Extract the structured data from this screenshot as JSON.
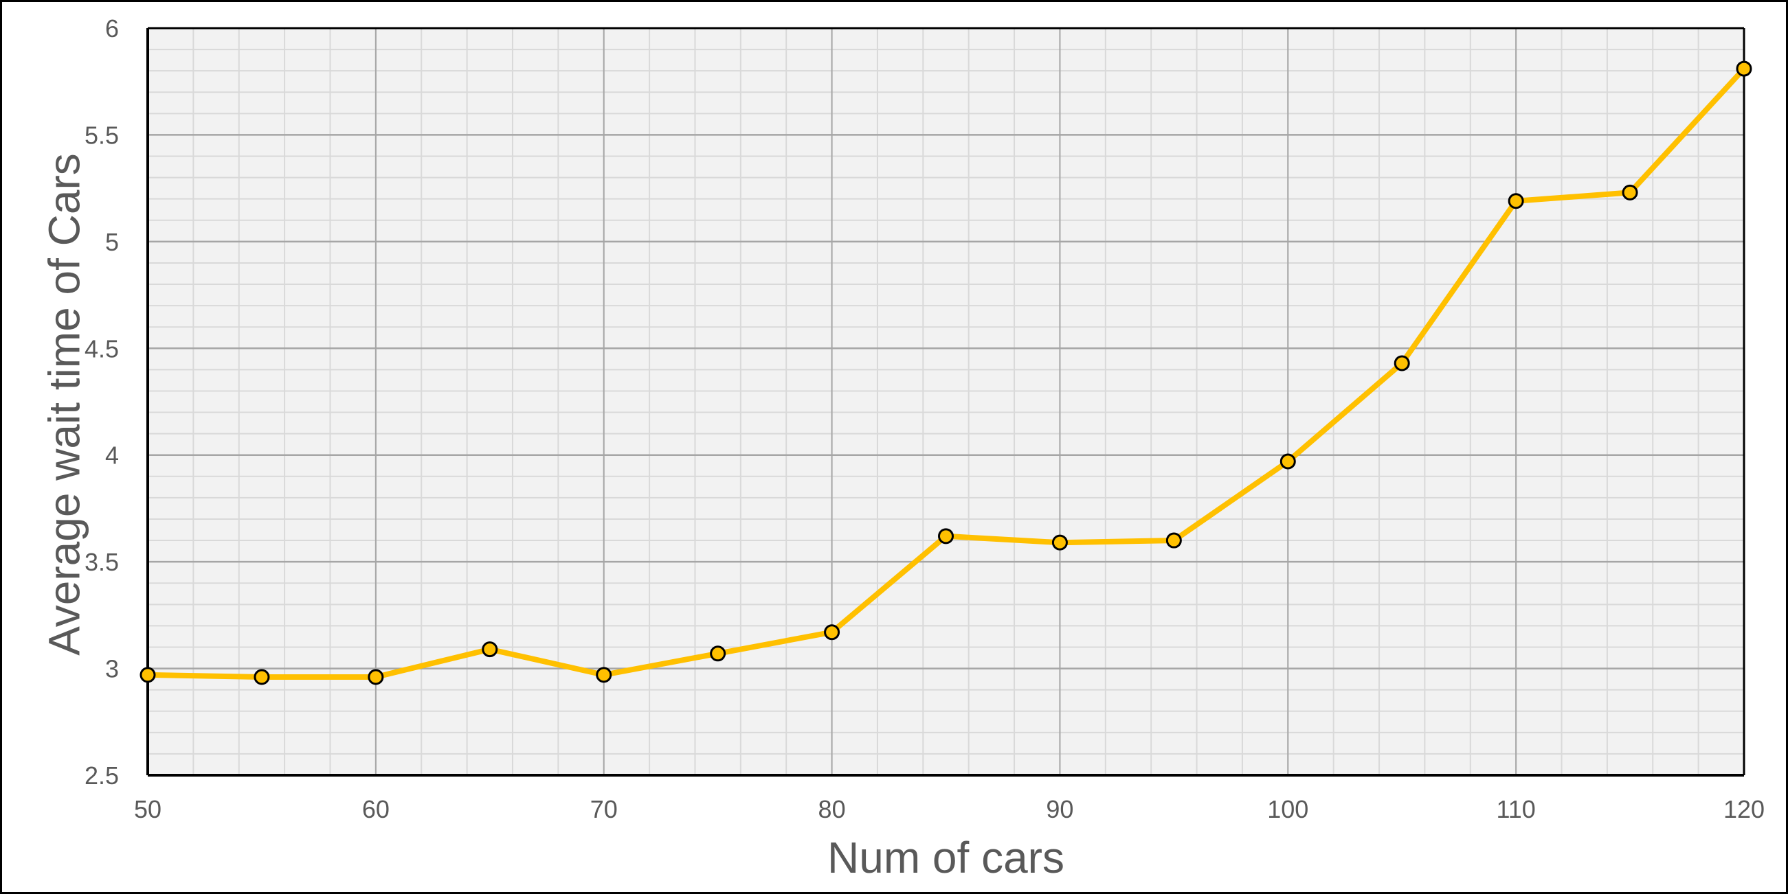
{
  "chart_data": {
    "type": "line",
    "title": "",
    "xlabel": "Num of cars",
    "ylabel": "Average wait time of Cars",
    "xlim": [
      50,
      120
    ],
    "ylim": [
      2.5,
      6
    ],
    "x_ticks": [
      50,
      60,
      70,
      80,
      90,
      100,
      110,
      120
    ],
    "y_ticks": [
      2.5,
      3,
      3.5,
      4,
      4.5,
      5,
      5.5,
      6
    ],
    "x_tick_labels": [
      "50",
      "60",
      "70",
      "80",
      "90",
      "100",
      "110",
      "120"
    ],
    "y_tick_labels": [
      "2.5",
      "3",
      "3.5",
      "4",
      "4.5",
      "5",
      "5.5",
      "6"
    ],
    "x_minor_step": 2,
    "y_minor_step": 0.1,
    "grid": true,
    "legend": "none",
    "series": [
      {
        "color": "#FFC000",
        "marker_edge_color": "#000000",
        "x": [
          50,
          55,
          60,
          65,
          70,
          75,
          80,
          85,
          90,
          95,
          100,
          105,
          110,
          115,
          120
        ],
        "y": [
          2.97,
          2.96,
          2.96,
          3.09,
          2.97,
          3.07,
          3.17,
          3.62,
          3.59,
          3.6,
          3.97,
          4.43,
          5.19,
          5.23,
          5.81
        ]
      }
    ],
    "colors": {
      "plot_background": "#F2F2F2",
      "major_grid": "#A6A6A6",
      "minor_grid": "#D9D9D9",
      "axis_line": "#000000",
      "text": "#595959"
    }
  }
}
